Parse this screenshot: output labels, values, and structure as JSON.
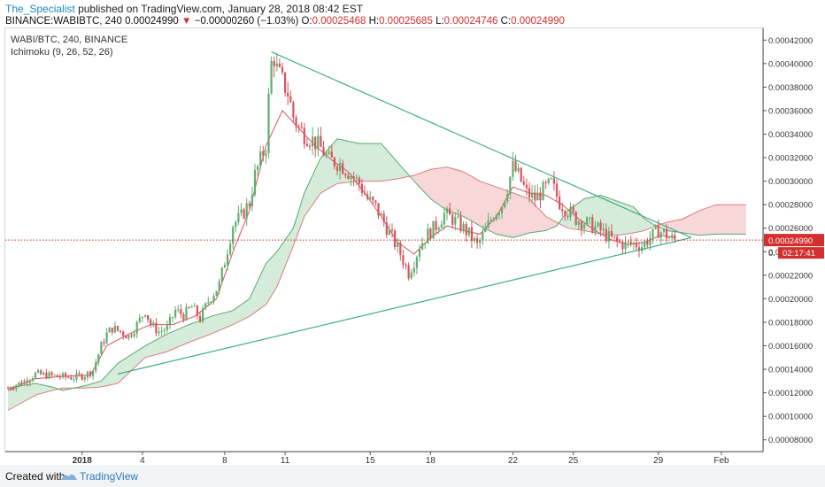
{
  "header": {
    "author": "The_Specialist",
    "published_text": "published on TradingView.com, January 28, 2018 08:42 EST",
    "symbol_line": "BINANCE:WABIBTC, 240",
    "last": "0.00024990",
    "change_arrow": "▼",
    "change": "−0.00000260 (−1.03%)",
    "o_label": "O:",
    "o_value": "0.00025468",
    "h_label": "H:",
    "h_value": "0.00025685",
    "l_label": "L:",
    "l_value": "0.00024746",
    "c_label": "C:",
    "c_value": "0.00024990"
  },
  "legend": {
    "symbol": "WABI/BTC, 240, BINANCE",
    "indicator": "Ichimoku (9, 26, 52, 26)"
  },
  "footer": {
    "created_with": "Created with",
    "brand": "TradingView"
  },
  "colors": {
    "up": "#5fae6d",
    "down": "#d9535d",
    "cloud_bull": "#cfe9d3",
    "cloud_bear": "#f6d0d1",
    "trendline": "#3fae8a",
    "last_price": "#d32f2f"
  },
  "chart_data": {
    "type": "candlestick",
    "ylim": [
      7e-05,
      0.00043
    ],
    "y_ticks": [
      "0.00008000",
      "0.00010000",
      "0.00012000",
      "0.00014000",
      "0.00016000",
      "0.00018000",
      "0.00020000",
      "0.00022000",
      "0.00024000",
      "0.00026000",
      "0.00028000",
      "0.00030000",
      "0.00032000",
      "0.00034000",
      "0.00036000",
      "0.00038000",
      "0.00040000",
      "0.00042000"
    ],
    "x_ticks": [
      "2018",
      "4",
      "8",
      "11",
      "15",
      "18",
      "22",
      "25",
      "29",
      "Feb"
    ],
    "last_price_label": "0.00024990",
    "countdown_label": "02:17:41",
    "countdown_prefix": "0.",
    "close_path": [
      [
        0,
        0.000124
      ],
      [
        6,
        0.00013
      ],
      [
        10,
        0.000136
      ],
      [
        18,
        0.000134
      ],
      [
        24,
        0.000133
      ],
      [
        28,
        0.000135
      ],
      [
        31,
        0.000139
      ],
      [
        34,
        0.00016
      ],
      [
        36,
        0.00017
      ],
      [
        38,
        0.000175
      ],
      [
        41,
        0.000172
      ],
      [
        44,
        0.000168
      ],
      [
        47,
        0.000178
      ],
      [
        50,
        0.00019
      ],
      [
        52,
        0.000178
      ],
      [
        55,
        0.000172
      ],
      [
        58,
        0.000175
      ],
      [
        61,
        0.00019
      ],
      [
        64,
        0.000186
      ],
      [
        67,
        0.000193
      ],
      [
        70,
        0.000183
      ],
      [
        73,
        0.000198
      ],
      [
        77,
        0.000212
      ],
      [
        79,
        0.000232
      ],
      [
        82,
        0.000263
      ],
      [
        85,
        0.00027
      ],
      [
        88,
        0.000282
      ],
      [
        90,
        0.000305
      ],
      [
        92,
        0.000318
      ],
      [
        94,
        0.00033
      ],
      [
        95,
        0.00037
      ],
      [
        96,
        0.0004
      ],
      [
        97,
        0.000405
      ],
      [
        98,
        0.000395
      ],
      [
        100,
        0.000385
      ],
      [
        102,
        0.000375
      ],
      [
        104,
        0.000355
      ],
      [
        106,
        0.000345
      ],
      [
        108,
        0.00034
      ],
      [
        111,
        0.000335
      ],
      [
        114,
        0.000328
      ],
      [
        117,
        0.000318
      ],
      [
        121,
        0.000315
      ],
      [
        124,
        0.000308
      ],
      [
        128,
        0.000298
      ],
      [
        131,
        0.000285
      ],
      [
        134,
        0.000278
      ],
      [
        137,
        0.000265
      ],
      [
        140,
        0.000252
      ],
      [
        143,
        0.000238
      ],
      [
        146,
        0.000222
      ],
      [
        148,
        0.000232
      ],
      [
        150,
        0.000245
      ],
      [
        153,
        0.000255
      ],
      [
        156,
        0.000262
      ],
      [
        159,
        0.000272
      ],
      [
        162,
        0.000268
      ],
      [
        165,
        0.000262
      ],
      [
        168,
        0.000255
      ],
      [
        171,
        0.000245
      ],
      [
        174,
        0.000258
      ],
      [
        177,
        0.000272
      ],
      [
        180,
        0.00028
      ],
      [
        182,
        0.000295
      ],
      [
        184,
        0.000312
      ],
      [
        186,
        0.000305
      ],
      [
        189,
        0.00029
      ],
      [
        192,
        0.000285
      ],
      [
        195,
        0.000292
      ],
      [
        198,
        0.000298
      ],
      [
        201,
        0.000282
      ],
      [
        204,
        0.000275
      ],
      [
        207,
        0.000268
      ],
      [
        210,
        0.000265
      ],
      [
        213,
        0.000262
      ],
      [
        216,
        0.000258
      ],
      [
        219,
        0.000252
      ],
      [
        222,
        0.000248
      ],
      [
        225,
        0.000246
      ],
      [
        228,
        0.000247
      ],
      [
        231,
        0.000245
      ],
      [
        234,
        0.000252
      ],
      [
        237,
        0.000258
      ],
      [
        239,
        0.000256
      ],
      [
        241,
        0.000252
      ],
      [
        243,
        0.00025
      ]
    ],
    "tenkan": [
      [
        0,
        0.000122
      ],
      [
        10,
        0.000132
      ],
      [
        20,
        0.000134
      ],
      [
        30,
        0.000135
      ],
      [
        36,
        0.00016
      ],
      [
        44,
        0.00017
      ],
      [
        52,
        0.000178
      ],
      [
        60,
        0.000178
      ],
      [
        68,
        0.000185
      ],
      [
        76,
        0.0002
      ],
      [
        82,
        0.00024
      ],
      [
        88,
        0.000275
      ],
      [
        94,
        0.00033
      ],
      [
        100,
        0.00036
      ],
      [
        106,
        0.000345
      ],
      [
        112,
        0.00033
      ],
      [
        118,
        0.000318
      ],
      [
        124,
        0.000308
      ],
      [
        130,
        0.00029
      ],
      [
        136,
        0.00027
      ],
      [
        142,
        0.000248
      ],
      [
        148,
        0.000238
      ],
      [
        154,
        0.000252
      ],
      [
        160,
        0.000262
      ],
      [
        166,
        0.000258
      ],
      [
        172,
        0.000255
      ],
      [
        178,
        0.00027
      ],
      [
        184,
        0.000295
      ],
      [
        190,
        0.00029
      ],
      [
        196,
        0.000288
      ],
      [
        202,
        0.00028
      ],
      [
        208,
        0.000268
      ],
      [
        214,
        0.000258
      ],
      [
        220,
        0.00025
      ],
      [
        226,
        0.000246
      ],
      [
        232,
        0.000248
      ],
      [
        238,
        0.000254
      ],
      [
        243,
        0.000252
      ]
    ],
    "cloud": [
      [
        0,
        0.000105,
        0.000124
      ],
      [
        10,
        0.000118,
        0.000128
      ],
      [
        16,
        0.000122,
        0.000125
      ],
      [
        20,
        0.000124,
        0.000122
      ],
      [
        28,
        0.000124,
        0.000126
      ],
      [
        34,
        0.000125,
        0.00013
      ],
      [
        40,
        0.000128,
        0.000145
      ],
      [
        50,
        0.00015,
        0.00016
      ],
      [
        58,
        0.000155,
        0.00017
      ],
      [
        66,
        0.000163,
        0.000178
      ],
      [
        74,
        0.00017,
        0.000185
      ],
      [
        82,
        0.000178,
        0.00019
      ],
      [
        88,
        0.000185,
        0.0002
      ],
      [
        94,
        0.000195,
        0.00023
      ],
      [
        98,
        0.00021,
        0.00024
      ],
      [
        104,
        0.000245,
        0.00026
      ],
      [
        108,
        0.00027,
        0.00029
      ],
      [
        114,
        0.00029,
        0.00032
      ],
      [
        120,
        0.000298,
        0.000336
      ],
      [
        128,
        0.0003,
        0.000332
      ],
      [
        136,
        0.0003,
        0.000332
      ],
      [
        142,
        0.000302,
        0.000316
      ],
      [
        148,
        0.000305,
        0.0003
      ],
      [
        154,
        0.00031,
        0.000285
      ],
      [
        160,
        0.000312,
        0.000275
      ],
      [
        166,
        0.000308,
        0.00027
      ],
      [
        172,
        0.0003,
        0.000262
      ],
      [
        178,
        0.000295,
        0.000255
      ],
      [
        184,
        0.00029,
        0.000252
      ],
      [
        190,
        0.000285,
        0.000256
      ],
      [
        196,
        0.00027,
        0.000258
      ],
      [
        200,
        0.000265,
        0.000262
      ],
      [
        204,
        0.00026,
        0.000275
      ],
      [
        210,
        0.000258,
        0.000285
      ],
      [
        216,
        0.000255,
        0.000288
      ],
      [
        222,
        0.000254,
        0.000283
      ],
      [
        228,
        0.000256,
        0.000278
      ],
      [
        232,
        0.000258,
        0.000268
      ],
      [
        236,
        0.000262,
        0.000262
      ],
      [
        240,
        0.000265,
        0.000258
      ],
      [
        246,
        0.000268,
        0.000256
      ],
      [
        252,
        0.000275,
        0.000254
      ],
      [
        258,
        0.00028,
        0.000255
      ],
      [
        264,
        0.00028,
        0.000255
      ],
      [
        269,
        0.00028,
        0.000255
      ]
    ],
    "trendlines": [
      [
        [
          40,
          0.000136
        ],
        [
          249,
          0.000252
        ]
      ],
      [
        [
          96,
          0.00041
        ],
        [
          249,
          0.000252
        ]
      ]
    ]
  }
}
